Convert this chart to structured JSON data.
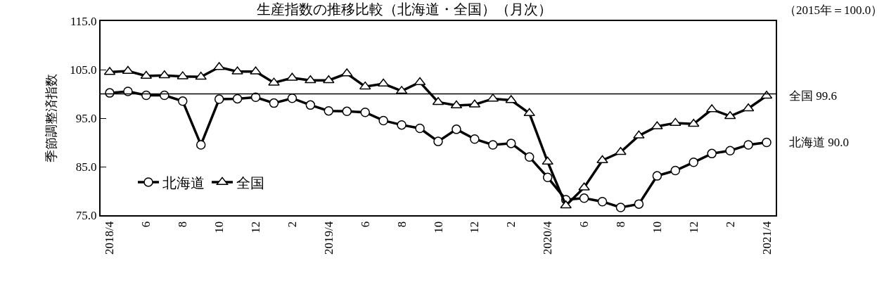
{
  "chart_data": {
    "type": "line",
    "title": "生産指数の推移比較（北海道・全国）（月次）",
    "subtitle": "（2015年＝100.0）",
    "ylabel": "季節調整済指数",
    "categories": [
      "2018/4",
      null,
      "6",
      null,
      "8",
      null,
      "10",
      null,
      "12",
      null,
      "2",
      null,
      "2019/4",
      null,
      "6",
      null,
      "8",
      null,
      "10",
      null,
      "12",
      null,
      "2",
      null,
      "2020/4",
      null,
      "6",
      null,
      "8",
      null,
      "10",
      null,
      "12",
      null,
      "2",
      null,
      "2021/4"
    ],
    "series": [
      {
        "name": "北海道",
        "color": "#000000",
        "marker": "circle",
        "values": [
          100.2,
          100.5,
          99.7,
          99.7,
          98.5,
          89.5,
          98.9,
          99.0,
          99.3,
          98.1,
          99.1,
          97.7,
          96.5,
          96.4,
          96.2,
          94.5,
          93.6,
          92.9,
          90.2,
          92.7,
          90.7,
          89.5,
          89.8,
          87.0,
          82.8,
          78.2,
          78.5,
          77.8,
          76.6,
          77.3,
          83.1,
          84.2,
          85.9,
          87.7,
          88.3,
          89.5,
          90.0
        ]
      },
      {
        "name": "全国",
        "color": "#000000",
        "marker": "triangle",
        "values": [
          104.5,
          104.7,
          103.7,
          103.8,
          103.6,
          103.5,
          105.5,
          104.6,
          104.6,
          102.3,
          103.3,
          102.8,
          102.8,
          104.2,
          101.5,
          102.1,
          100.6,
          102.4,
          98.3,
          97.6,
          97.8,
          99.0,
          98.7,
          96.0,
          86.0,
          77.0,
          80.7,
          86.3,
          88.0,
          91.4,
          93.3,
          94.0,
          93.8,
          96.8,
          95.4,
          97.0,
          99.6
        ]
      }
    ],
    "ylim": [
      75,
      115
    ],
    "yticks": [
      {
        "value": 75,
        "label": "75.0"
      },
      {
        "value": 85,
        "label": "85.0"
      },
      {
        "value": 95,
        "label": "95.0"
      },
      {
        "value": 105,
        "label": "105.0"
      },
      {
        "value": 115,
        "label": "115.0"
      }
    ],
    "ref_lines": [
      {
        "axis": "y",
        "value": 100,
        "color": "#000000"
      }
    ],
    "annotations": [
      {
        "text": "全国 99.6",
        "x": "2021/4",
        "y": 99.6
      },
      {
        "text": "北海道 90.0",
        "x": "2021/4",
        "y": 90.0
      }
    ],
    "legend": "bottom left",
    "line_style": "solid"
  }
}
